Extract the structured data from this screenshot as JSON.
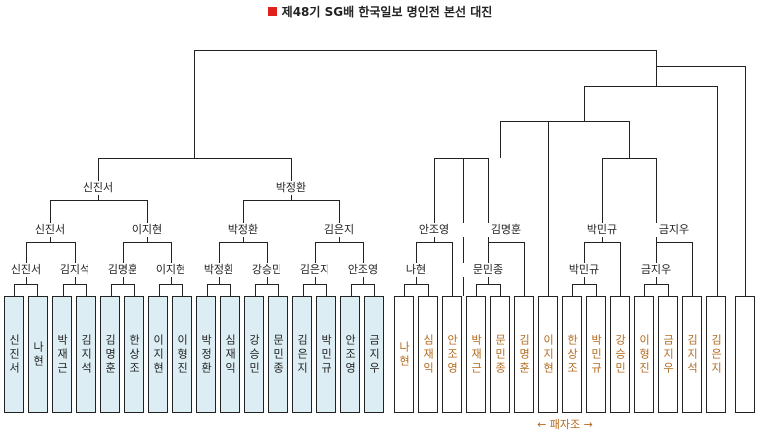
{
  "title": "제48기 SG배 한국일보 명인전 본선 대진",
  "colors": {
    "title_marker": "#e0201c",
    "main_bracket_fill": "#dcedf3",
    "repechage_text": "#b46a1c",
    "line": "#222222"
  },
  "players": [
    {
      "name": "신진서",
      "group": "main"
    },
    {
      "name": "나현",
      "group": "main"
    },
    {
      "name": "박재근",
      "group": "main"
    },
    {
      "name": "김지석",
      "group": "main"
    },
    {
      "name": "김명훈",
      "group": "main"
    },
    {
      "name": "한상조",
      "group": "main"
    },
    {
      "name": "이지현",
      "group": "main"
    },
    {
      "name": "이형진",
      "group": "main"
    },
    {
      "name": "박정환",
      "group": "main"
    },
    {
      "name": "심재익",
      "group": "main"
    },
    {
      "name": "강승민",
      "group": "main"
    },
    {
      "name": "문민종",
      "group": "main"
    },
    {
      "name": "김은지",
      "group": "main"
    },
    {
      "name": "박민규",
      "group": "main"
    },
    {
      "name": "안조영",
      "group": "main"
    },
    {
      "name": "금지우",
      "group": "main"
    },
    {
      "name": "나현",
      "group": "repechage"
    },
    {
      "name": "심재익",
      "group": "repechage"
    },
    {
      "name": "안조영",
      "group": "repechage"
    },
    {
      "name": "박재근",
      "group": "repechage"
    },
    {
      "name": "문민종",
      "group": "repechage"
    },
    {
      "name": "김명훈",
      "group": "repechage"
    },
    {
      "name": "이지현",
      "group": "repechage"
    },
    {
      "name": "한상조",
      "group": "repechage"
    },
    {
      "name": "박민규",
      "group": "repechage"
    },
    {
      "name": "강승민",
      "group": "repechage"
    },
    {
      "name": "이형진",
      "group": "repechage"
    },
    {
      "name": "금지우",
      "group": "repechage"
    },
    {
      "name": "김지석",
      "group": "repechage"
    },
    {
      "name": "김은지",
      "group": "repechage"
    },
    {
      "name": "",
      "group": "empty"
    }
  ],
  "main_bracket": {
    "round1": [
      "신진서",
      "김지석",
      "김명훈",
      "이지현",
      "박정환",
      "강승민",
      "김은지",
      "안조영"
    ],
    "round2": [
      "신진서",
      "이지현",
      "박정환",
      "김은지"
    ],
    "round3": [
      "신진서",
      "박정환"
    ]
  },
  "repechage_bracket": {
    "round1": [
      "나현",
      "문민종",
      "박민규",
      "금지우"
    ],
    "round2": [
      "안조영",
      "김명훈",
      "박민규",
      "금지우"
    ]
  },
  "repechage_label": "← 패자조 →"
}
